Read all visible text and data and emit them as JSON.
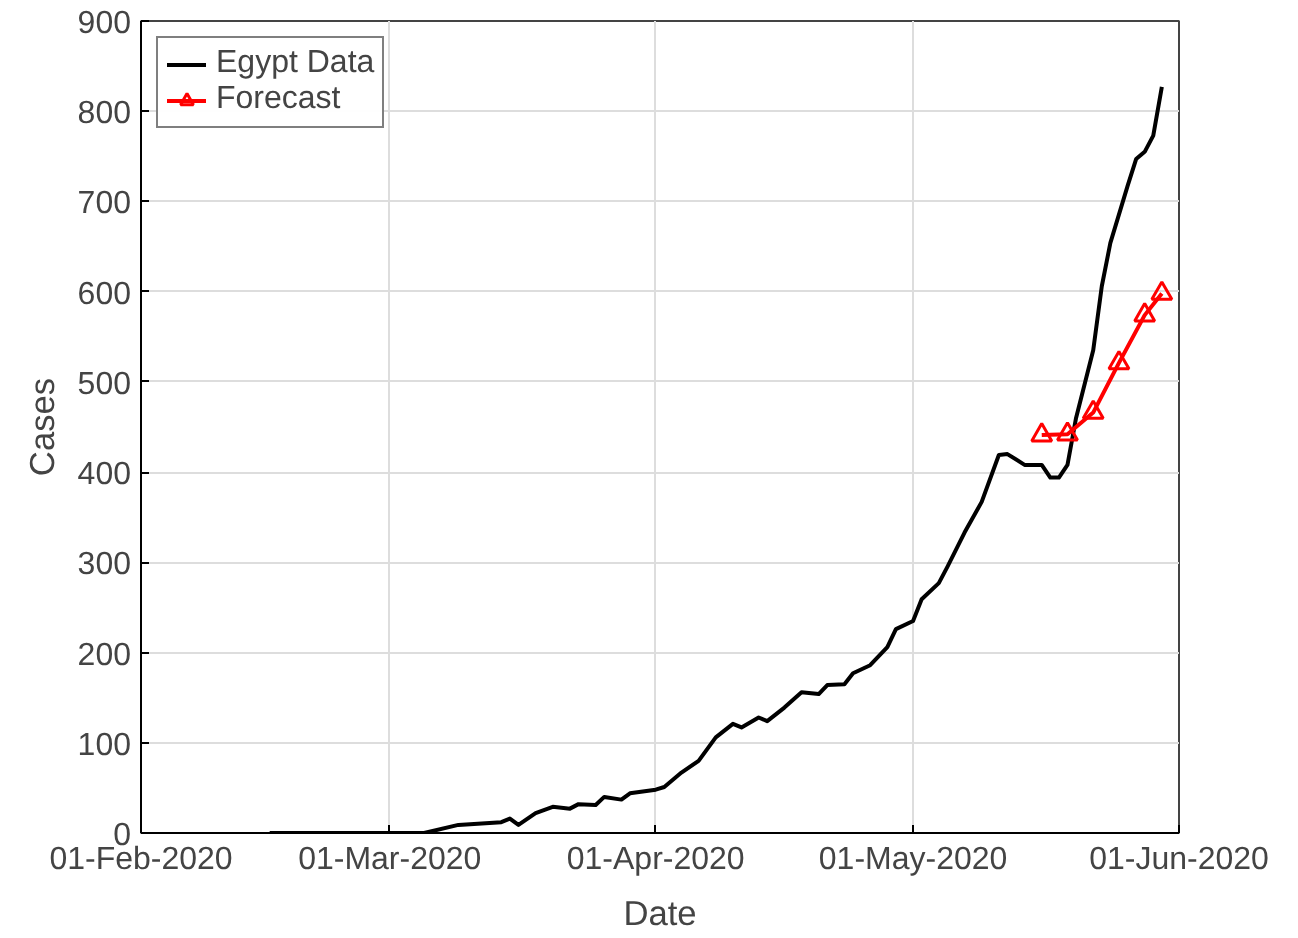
{
  "chart_data": {
    "type": "line",
    "xlabel": "Date",
    "ylabel": "Cases",
    "xlim": [
      "2020-02-01",
      "2020-06-01"
    ],
    "xticks": [
      {
        "value": "2020-02-01",
        "label": "01-Feb-2020"
      },
      {
        "value": "2020-03-01",
        "label": "01-Mar-2020"
      },
      {
        "value": "2020-04-01",
        "label": "01-Apr-2020"
      },
      {
        "value": "2020-05-01",
        "label": "01-May-2020"
      },
      {
        "value": "2020-06-01",
        "label": "01-Jun-2020"
      }
    ],
    "ylim": [
      0,
      900
    ],
    "yticks": [
      0,
      100,
      200,
      300,
      400,
      500,
      600,
      700,
      800,
      900
    ],
    "grid": true,
    "legend": "top left",
    "line_style": "solid",
    "series": [
      {
        "name": "Egypt Data",
        "color": "#000000",
        "marker": "none",
        "x": [
          "2020-02-16",
          "2020-03-05",
          "2020-03-09",
          "2020-03-14",
          "2020-03-15",
          "2020-03-16",
          "2020-03-18",
          "2020-03-20",
          "2020-03-22",
          "2020-03-23",
          "2020-03-25",
          "2020-03-26",
          "2020-03-28",
          "2020-03-29",
          "2020-04-01",
          "2020-04-02",
          "2020-04-04",
          "2020-04-06",
          "2020-04-08",
          "2020-04-10",
          "2020-04-11",
          "2020-04-13",
          "2020-04-14",
          "2020-04-16",
          "2020-04-18",
          "2020-04-20",
          "2020-04-21",
          "2020-04-23",
          "2020-04-24",
          "2020-04-26",
          "2020-04-28",
          "2020-04-29",
          "2020-05-01",
          "2020-05-02",
          "2020-05-04",
          "2020-05-05",
          "2020-05-07",
          "2020-05-09",
          "2020-05-11",
          "2020-05-12",
          "2020-05-14",
          "2020-05-16",
          "2020-05-17",
          "2020-05-18",
          "2020-05-19",
          "2020-05-20",
          "2020-05-22",
          "2020-05-23",
          "2020-05-24",
          "2020-05-26",
          "2020-05-27",
          "2020-05-28",
          "2020-05-29",
          "2020-05-30"
        ],
        "values": [
          0,
          0,
          9,
          12,
          16,
          9,
          22,
          29,
          27,
          32,
          31,
          40,
          37,
          44,
          48,
          51,
          67,
          80,
          106,
          121,
          117,
          128,
          124,
          139,
          156,
          154,
          164,
          165,
          177,
          186,
          206,
          226,
          235,
          259,
          277,
          295,
          333,
          367,
          419,
          420,
          408,
          408,
          394,
          394,
          408,
          460,
          535,
          606,
          654,
          717,
          747,
          755,
          773,
          827
        ]
      },
      {
        "name": "Forecast",
        "color": "#ff0000",
        "marker": "triangle",
        "x": [
          "2020-05-16",
          "2020-05-19",
          "2020-05-22",
          "2020-05-25",
          "2020-05-28",
          "2020-05-30"
        ],
        "values": [
          441,
          442,
          466,
          521,
          574,
          598
        ]
      }
    ]
  }
}
